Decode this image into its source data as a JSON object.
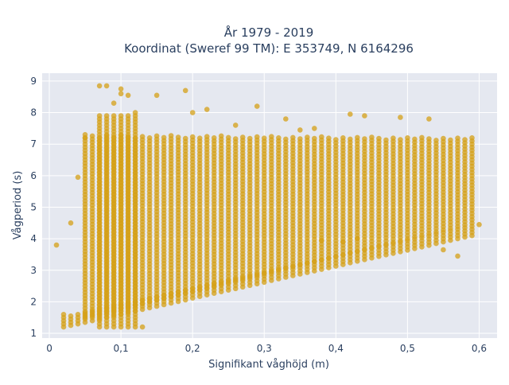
{
  "chart_data": {
    "type": "scatter",
    "title_line1": "År 1979 - 2019",
    "title_line2": "Koordinat (Sweref 99 TM): E 353749, N 6164296",
    "xlabel": "Signifikant våghöjd (m)",
    "ylabel": "Vågperiod (s)",
    "xlim": [
      -0.01,
      0.625
    ],
    "ylim": [
      0.85,
      9.25
    ],
    "xticks": [
      0,
      0.1,
      0.2,
      0.3,
      0.4,
      0.5,
      0.6
    ],
    "xtick_labels": [
      "0",
      "0,1",
      "0,2",
      "0,3",
      "0,4",
      "0,5",
      "0,6"
    ],
    "yticks": [
      1,
      2,
      3,
      4,
      5,
      6,
      7,
      8,
      9
    ],
    "ytick_labels": [
      "1",
      "2",
      "3",
      "4",
      "5",
      "6",
      "7",
      "8",
      "9"
    ],
    "grid": true,
    "point_color": "#d4a017",
    "plot_bg": "#e5e8f0",
    "bands": [
      {
        "x_start": 0.02,
        "x_end": 0.59,
        "y_low_start": 1.2,
        "y_low_end": 4.1,
        "y_high_start": 1.6,
        "y_high_end": 4.4
      },
      {
        "x_start": 0.05,
        "x_end": 0.59,
        "y_low_start": 1.5,
        "y_low_end": 4.5,
        "y_high_start": 7.3,
        "y_high_end": 7.2
      },
      {
        "x_start": 0.07,
        "x_end": 0.12,
        "y_low_start": 1.2,
        "y_low_end": 1.2,
        "y_high_start": 7.9,
        "y_high_end": 8.0
      }
    ],
    "outliers": [
      {
        "x": 0.07,
        "y": 8.85
      },
      {
        "x": 0.08,
        "y": 8.85
      },
      {
        "x": 0.1,
        "y": 8.75
      },
      {
        "x": 0.1,
        "y": 8.6
      },
      {
        "x": 0.09,
        "y": 8.3
      },
      {
        "x": 0.11,
        "y": 8.55
      },
      {
        "x": 0.15,
        "y": 8.55
      },
      {
        "x": 0.19,
        "y": 8.7
      },
      {
        "x": 0.2,
        "y": 8.0
      },
      {
        "x": 0.22,
        "y": 8.1
      },
      {
        "x": 0.29,
        "y": 8.2
      },
      {
        "x": 0.42,
        "y": 7.95
      },
      {
        "x": 0.44,
        "y": 7.9
      },
      {
        "x": 0.49,
        "y": 7.85
      },
      {
        "x": 0.53,
        "y": 7.8
      },
      {
        "x": 0.01,
        "y": 3.8
      },
      {
        "x": 0.03,
        "y": 4.5
      },
      {
        "x": 0.04,
        "y": 5.95
      },
      {
        "x": 0.05,
        "y": 7.2
      },
      {
        "x": 0.13,
        "y": 1.2
      },
      {
        "x": 0.6,
        "y": 4.45
      },
      {
        "x": 0.55,
        "y": 3.65
      },
      {
        "x": 0.57,
        "y": 3.45
      },
      {
        "x": 0.41,
        "y": 3.9
      },
      {
        "x": 0.43,
        "y": 4.0
      },
      {
        "x": 0.38,
        "y": 3.95
      },
      {
        "x": 0.35,
        "y": 7.45
      },
      {
        "x": 0.37,
        "y": 7.5
      },
      {
        "x": 0.33,
        "y": 7.8
      },
      {
        "x": 0.26,
        "y": 7.6
      }
    ]
  }
}
